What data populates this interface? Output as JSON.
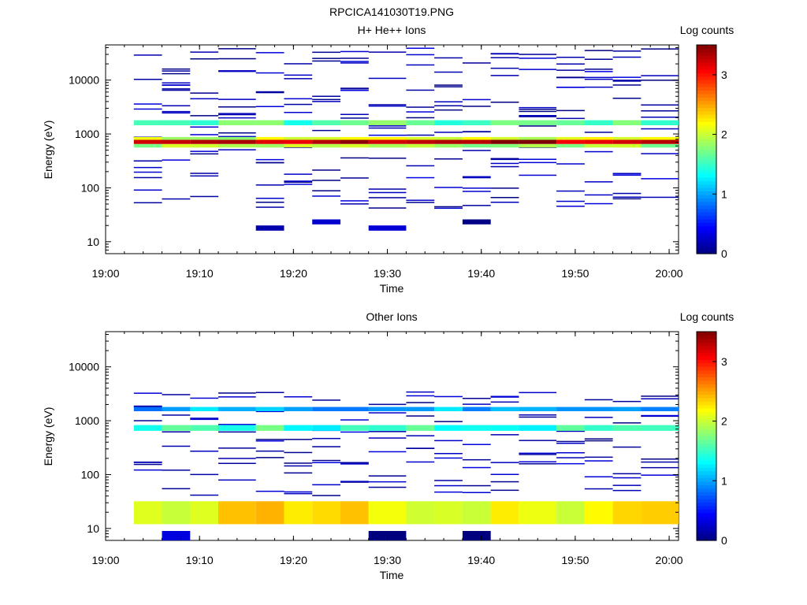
{
  "figure_title": "RPCICA141030T19.PNG",
  "colors": {
    "colormap": [
      "#00007f",
      "#0000ff",
      "#007fff",
      "#00ffff",
      "#7fff7f",
      "#ffff00",
      "#ff7f00",
      "#ff0000",
      "#7f0000"
    ],
    "axes": "#000000",
    "background": "#ffffff"
  },
  "chart_data": [
    {
      "type": "heatmap",
      "title": "H+ He++ Ions",
      "xlabel": "Time",
      "ylabel": "Energy (eV)",
      "colorbar_label": "Log counts",
      "xlim": [
        "19:00",
        "20:01"
      ],
      "xticks": [
        "19:00",
        "19:10",
        "19:20",
        "19:30",
        "19:40",
        "19:50",
        "20:00"
      ],
      "ylim": [
        6,
        45000
      ],
      "yscale": "log",
      "yticks": [
        "10",
        "100",
        "1000",
        "10000"
      ],
      "clim": [
        0,
        3.5
      ],
      "cbar_ticks": [
        "0",
        "1",
        "2",
        "3"
      ],
      "time_bins": [
        "19:03",
        "19:06",
        "19:09",
        "19:12",
        "19:16",
        "19:19",
        "19:22",
        "19:25",
        "19:28",
        "19:32",
        "19:35",
        "19:38",
        "19:41",
        "19:44",
        "19:48",
        "19:51",
        "19:54",
        "19:57"
      ],
      "features": [
        {
          "energy_low": 650,
          "energy_high": 780,
          "times": "19:03-20:01",
          "level": 3.3
        },
        {
          "energy_low": 780,
          "energy_high": 880,
          "times": "19:03-20:01",
          "level": 2.0
        },
        {
          "energy_low": 560,
          "energy_high": 650,
          "times": "19:03-20:01",
          "level": 1.9
        },
        {
          "energy_low": 1450,
          "energy_high": 1800,
          "times": "19:03-20:01",
          "level": 1.6
        },
        {
          "energy_low": 16,
          "energy_high": 20,
          "times": "19:16, 19:28",
          "level": 0.1
        },
        {
          "energy_low": 21,
          "energy_high": 26,
          "times": "19:22, 19:38",
          "level": 0.2
        }
      ],
      "scattered_counts": "sparse single-count bins between 40 eV and 40000 eV at all times"
    },
    {
      "type": "heatmap",
      "title": "Other Ions",
      "xlabel": "Time",
      "ylabel": "Energy (eV)",
      "colorbar_label": "Log counts",
      "xlim": [
        "19:00",
        "20:01"
      ],
      "xticks": [
        "19:00",
        "19:10",
        "19:20",
        "19:30",
        "19:40",
        "19:50",
        "20:00"
      ],
      "ylim": [
        6,
        45000
      ],
      "yscale": "log",
      "yticks": [
        "10",
        "100",
        "1000",
        "10000"
      ],
      "clim": [
        0,
        3.5
      ],
      "cbar_ticks": [
        "0",
        "1",
        "2",
        "3"
      ],
      "time_bins": [
        "19:03",
        "19:06",
        "19:09",
        "19:12",
        "19:16",
        "19:19",
        "19:22",
        "19:25",
        "19:28",
        "19:32",
        "19:35",
        "19:38",
        "19:41",
        "19:44",
        "19:48",
        "19:51",
        "19:54",
        "19:57"
      ],
      "features": [
        {
          "energy_low": 12,
          "energy_high": 32,
          "times": "19:03-20:01",
          "level": 2.2
        },
        {
          "energy_low": 650,
          "energy_high": 830,
          "times": "19:03-20:01",
          "level": 1.5
        },
        {
          "energy_low": 1500,
          "energy_high": 1800,
          "times": "19:03-20:01",
          "level": 1.0
        },
        {
          "energy_low": 6,
          "energy_high": 9,
          "times": "19:06, 19:28, 19:38",
          "level": 0.1
        }
      ],
      "scattered_counts": "sparse single-count bins between 40 eV and 3500 eV at all times"
    }
  ]
}
